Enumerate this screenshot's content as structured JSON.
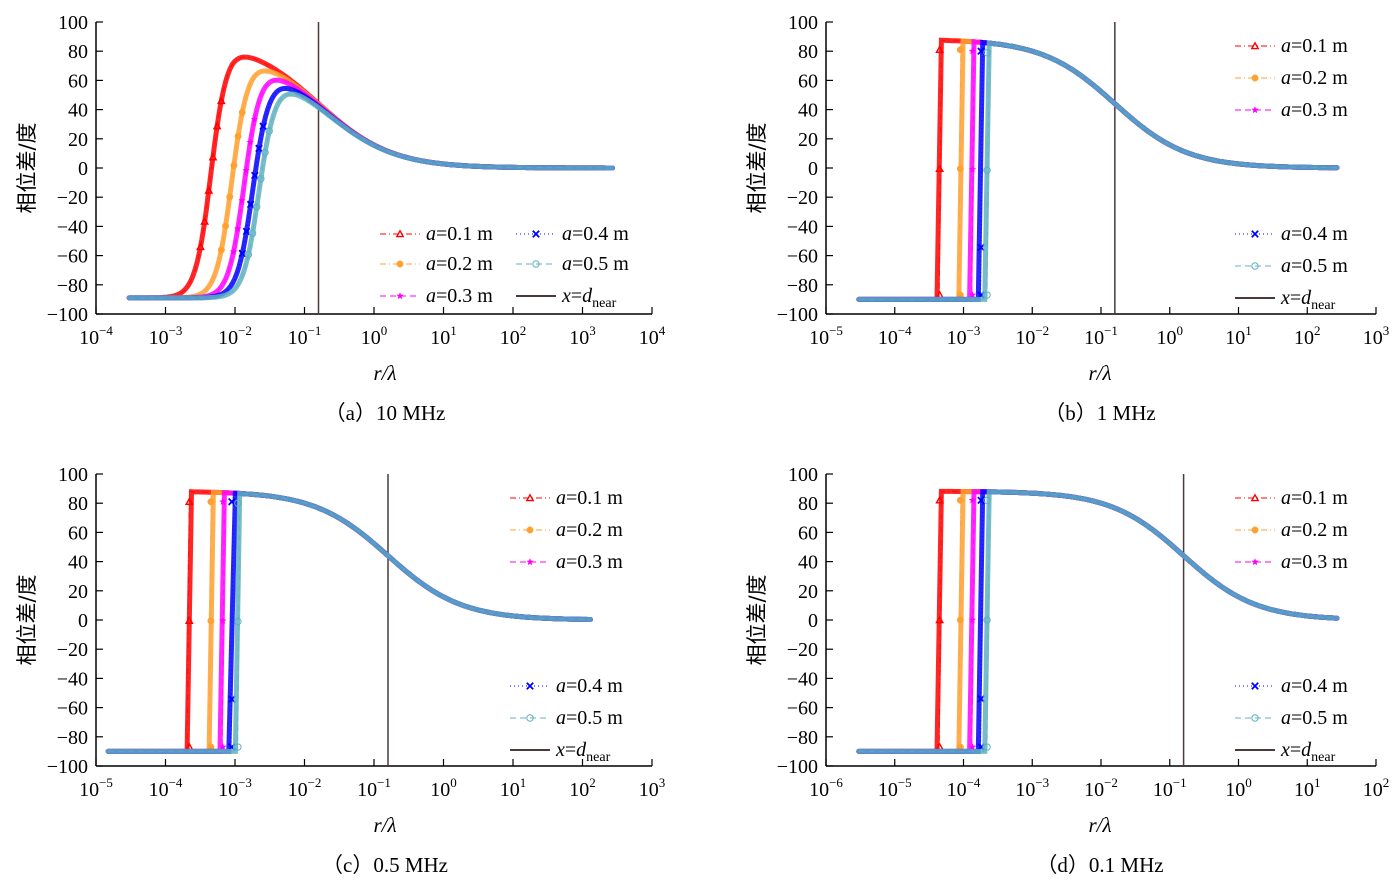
{
  "figure": {
    "ylabel": "相位差/度",
    "xlabel": "r/λ",
    "colors": {
      "a=0.1 m": "#ff0000",
      "a=0.2 m": "#ffa030",
      "a=0.3 m": "#ff00ff",
      "a=0.4 m": "#0000ff",
      "a=0.5 m": "#5fb0c0",
      "x=d_near": "#4a3a3a"
    },
    "legend": [
      {
        "label_prefix": "a",
        "label_eq": "=0.1 m",
        "marker": "triangle",
        "line": "dashdot",
        "color": "#ff0000"
      },
      {
        "label_prefix": "a",
        "label_eq": "=0.2 m",
        "marker": "hexagon",
        "line": "dashdot",
        "color": "#ffa030"
      },
      {
        "label_prefix": "a",
        "label_eq": "=0.3 m",
        "marker": "star",
        "line": "dashed",
        "color": "#ff00ff"
      },
      {
        "label_prefix": "a",
        "label_eq": "=0.4 m",
        "marker": "x",
        "line": "dotted",
        "color": "#0000ff"
      },
      {
        "label_prefix": "a",
        "label_eq": "=0.5 m",
        "marker": "circle",
        "line": "dashed",
        "color": "#5fb0c0"
      },
      {
        "label_prefix": "x",
        "label_eq": "=d",
        "label_sub": "near",
        "marker": "none",
        "line": "solid",
        "color": "#4a3a3a"
      }
    ]
  },
  "chart_data": [
    {
      "type": "line",
      "caption": "（a）10 MHz",
      "title": "(a) 10 MHz",
      "xlabel": "r/λ",
      "ylabel": "相位差/度",
      "xscale": "log",
      "xlim_exp": [
        -4,
        4
      ],
      "ylim": [
        -100,
        100
      ],
      "yticks": [
        -100,
        -80,
        -60,
        -40,
        -20,
        0,
        20,
        40,
        60,
        80,
        100
      ],
      "xticks_exp": [
        -4,
        -3,
        -2,
        -1,
        0,
        1,
        2,
        3,
        4
      ],
      "legend_placement": "bottom-right (two columns)",
      "vline_x": 0.159,
      "x_range": [
        0.0003,
        2700
      ],
      "series": [
        {
          "name": "a=0.1 m",
          "jump_x": 0.0045,
          "peak": 81,
          "peak_x": 0.009
        },
        {
          "name": "a=0.2 m",
          "jump_x": 0.009,
          "peak": 71,
          "peak_x": 0.018
        },
        {
          "name": "a=0.3 m",
          "jump_x": 0.0135,
          "peak": 65,
          "peak_x": 0.025
        },
        {
          "name": "a=0.4 m",
          "jump_x": 0.018,
          "peak": 59,
          "peak_x": 0.032
        },
        {
          "name": "a=0.5 m",
          "jump_x": 0.022,
          "peak": 55,
          "peak_x": 0.04
        }
      ],
      "common_tail": {
        "x": [
          0.159,
          1,
          10,
          100,
          1000
        ],
        "y": [
          45,
          16,
          3,
          0.5,
          0
        ]
      },
      "low_value": -89
    },
    {
      "type": "line",
      "caption": "（b）1 MHz",
      "title": "(b) 1 MHz",
      "xlabel": "r/λ",
      "ylabel": "相位差/度",
      "xscale": "log",
      "xlim_exp": [
        -5,
        3
      ],
      "ylim": [
        -100,
        100
      ],
      "yticks": [
        -100,
        -80,
        -60,
        -40,
        -20,
        0,
        20,
        40,
        60,
        80,
        100
      ],
      "xticks_exp": [
        -5,
        -4,
        -3,
        -2,
        -1,
        0,
        1,
        2,
        3
      ],
      "legend_placement": "top-right and bottom-right",
      "vline_x": 0.159,
      "x_range": [
        3e-05,
        270
      ],
      "series": [
        {
          "name": "a=0.1 m",
          "jump_x": 0.00045,
          "peak": 89
        },
        {
          "name": "a=0.2 m",
          "jump_x": 0.0009,
          "peak": 89
        },
        {
          "name": "a=0.3 m",
          "jump_x": 0.00135,
          "peak": 88
        },
        {
          "name": "a=0.4 m",
          "jump_x": 0.0018,
          "peak": 88
        },
        {
          "name": "a=0.5 m",
          "jump_x": 0.0022,
          "peak": 87
        }
      ],
      "common_tail": {
        "x": [
          0.005,
          0.159,
          1,
          10,
          100
        ],
        "y": [
          87,
          45,
          16,
          3,
          0.5
        ]
      },
      "low_value": -90
    },
    {
      "type": "line",
      "caption": "（c）0.5 MHz",
      "title": "(c) 0.5 MHz",
      "xlabel": "r/λ",
      "ylabel": "相位差/度",
      "xscale": "log",
      "xlim_exp": [
        -5,
        3
      ],
      "ylim": [
        -100,
        100
      ],
      "yticks": [
        -100,
        -80,
        -60,
        -40,
        -20,
        0,
        20,
        40,
        60,
        80,
        100
      ],
      "xticks_exp": [
        -5,
        -4,
        -3,
        -2,
        -1,
        0,
        1,
        2,
        3
      ],
      "legend_placement": "top-right and bottom-right",
      "vline_x": 0.159,
      "x_range": [
        1.5e-05,
        130
      ],
      "series": [
        {
          "name": "a=0.1 m",
          "jump_x": 0.00022,
          "peak": 89
        },
        {
          "name": "a=0.2 m",
          "jump_x": 0.00045,
          "peak": 89
        },
        {
          "name": "a=0.3 m",
          "jump_x": 0.00067,
          "peak": 89
        },
        {
          "name": "a=0.4 m",
          "jump_x": 0.0009,
          "peak": 89
        },
        {
          "name": "a=0.5 m",
          "jump_x": 0.0011,
          "peak": 88
        }
      ],
      "common_tail": {
        "x": [
          0.002,
          0.159,
          1,
          10,
          100
        ],
        "y": [
          88,
          45,
          16,
          3,
          0.5
        ]
      },
      "low_value": -90
    },
    {
      "type": "line",
      "caption": "（d）0.1 MHz",
      "title": "(d) 0.1 MHz",
      "xlabel": "r/λ",
      "ylabel": "相位差/度",
      "xscale": "log",
      "xlim_exp": [
        -6,
        2
      ],
      "ylim": [
        -100,
        100
      ],
      "yticks": [
        -100,
        -80,
        -60,
        -40,
        -20,
        0,
        20,
        40,
        60,
        80,
        100
      ],
      "xticks_exp": [
        -6,
        -5,
        -4,
        -3,
        -2,
        -1,
        0,
        1,
        2
      ],
      "legend_placement": "top-right and bottom-right",
      "vline_x": 0.159,
      "x_range": [
        3e-06,
        27
      ],
      "series": [
        {
          "name": "a=0.1 m",
          "jump_x": 4.5e-05,
          "peak": 90
        },
        {
          "name": "a=0.2 m",
          "jump_x": 9e-05,
          "peak": 90
        },
        {
          "name": "a=0.3 m",
          "jump_x": 0.000135,
          "peak": 90
        },
        {
          "name": "a=0.4 m",
          "jump_x": 0.00018,
          "peak": 90
        },
        {
          "name": "a=0.5 m",
          "jump_x": 0.00022,
          "peak": 90
        }
      ],
      "common_tail": {
        "x": [
          0.0005,
          0.159,
          1,
          10
        ],
        "y": [
          89,
          45,
          16,
          3
        ]
      },
      "low_value": -90
    }
  ]
}
